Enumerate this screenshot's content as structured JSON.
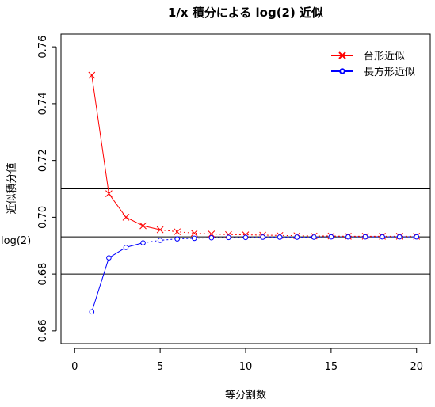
{
  "chart_data": {
    "type": "line",
    "title": "1/x 積分による log(2) 近似",
    "xlabel": "等分割数",
    "ylabel": "近似積分値",
    "xlim": [
      -0.8,
      20.8
    ],
    "ylim": [
      0.6555,
      0.7645
    ],
    "x_ticks": [
      0,
      5,
      10,
      15,
      20
    ],
    "x_tick_labels": [
      "0",
      "5",
      "10",
      "15",
      "20"
    ],
    "y_ticks": [
      0.66,
      0.68,
      0.7,
      0.72,
      0.74,
      0.76
    ],
    "y_tick_labels": [
      "0.66",
      "0.68",
      "0.70",
      "0.72",
      "0.74",
      "0.76"
    ],
    "reference_lines": [
      {
        "y": 0.6931,
        "label": "log(2)"
      },
      {
        "y": 0.71,
        "label": ""
      },
      {
        "y": 0.68,
        "label": ""
      }
    ],
    "legend_position": "top-right",
    "x": [
      1,
      2,
      3,
      4,
      5,
      6,
      7,
      8,
      9,
      10,
      11,
      12,
      13,
      14,
      15,
      16,
      17,
      18,
      19,
      20
    ],
    "series": [
      {
        "name": "台形近似",
        "color": "#ff0000",
        "marker": "cross",
        "values": [
          0.75,
          0.7083,
          0.7,
          0.697,
          0.6956,
          0.6949,
          0.6944,
          0.6941,
          0.6939,
          0.6938,
          0.6937,
          0.6936,
          0.6935,
          0.6934,
          0.6934,
          0.6933,
          0.6933,
          0.6933,
          0.6933,
          0.6933
        ]
      },
      {
        "name": "長方形近似",
        "color": "#0000ff",
        "marker": "circle",
        "values": [
          0.6667,
          0.6857,
          0.6894,
          0.691,
          0.6919,
          0.6924,
          0.6926,
          0.6928,
          0.6929,
          0.6929,
          0.693,
          0.693,
          0.693,
          0.693,
          0.6931,
          0.6931,
          0.6931,
          0.6931,
          0.6931,
          0.6931
        ]
      }
    ]
  }
}
